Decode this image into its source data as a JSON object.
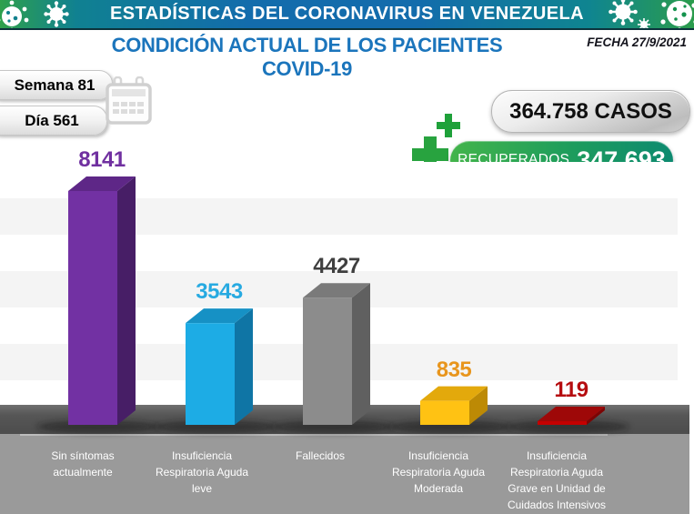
{
  "header": {
    "title": "ESTADÍSTICAS DEL CORONAVIRUS EN VENEZUELA"
  },
  "subheader": {
    "title": "CONDICIÓN ACTUAL DE LOS PACIENTES COVID-19",
    "date": "FECHA 27/9/2021"
  },
  "period": {
    "week": "Semana 81",
    "day": "Día 561"
  },
  "totals": {
    "cases": "364.758 CASOS",
    "recovered_label": "RECUPERADOS",
    "recovered_value": "347.693"
  },
  "icons": {
    "calendar": "calendar-icon",
    "recovered": "medical-cross-icon",
    "header_decoration": "virus-icon"
  },
  "palette": {
    "header_green": "#2ba14c",
    "header_blue": "#136cac",
    "subtitle_blue": "#1b75bc",
    "recovered_green": "#2fae4e",
    "cases_silver": "#d0d0d0",
    "floor_gray": "#555555",
    "label_band_gray": "#9a9a9a"
  },
  "chart_data": {
    "type": "bar",
    "title": "CONDICIÓN ACTUAL DE LOS PACIENTES COVID-19",
    "categories": [
      "Sin síntomas\nactualmente",
      "Insuficiencia\nRespiratoria Aguda\nleve",
      "Fallecidos",
      "Insuficiencia\nRespiratoria Aguda\nModerada",
      "Insuficiencia\nRespiratoria Aguda\nGrave en Unidad de\nCuidados Intensivos"
    ],
    "values": [
      8141,
      3543,
      4427,
      835,
      119
    ],
    "bar_colors": [
      {
        "front": "#7231a3",
        "top": "#5e2787",
        "side": "#471e66",
        "value_text": "#7030a0"
      },
      {
        "front": "#1dace5",
        "top": "#1691c5",
        "side": "#0f75a5",
        "value_text": "#27aae1"
      },
      {
        "front": "#8c8c8c",
        "top": "#7a7a7a",
        "side": "#606060",
        "value_text": "#3f3f3f"
      },
      {
        "front": "#ffc213",
        "top": "#e3a90c",
        "side": "#bd8a05",
        "value_text": "#e8951c"
      },
      {
        "front": "#c40000",
        "top": "#9e0808",
        "side": "#7d0404",
        "value_text": "#b60d10"
      }
    ],
    "xlabel": "",
    "ylabel": "",
    "ylim": [
      0,
      9000
    ],
    "legend": false,
    "style": "3d-columns on dark floor, striped light background, value labels above bars"
  }
}
